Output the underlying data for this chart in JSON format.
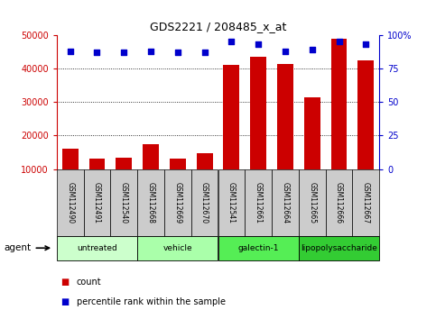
{
  "title": "GDS2221 / 208485_x_at",
  "samples": [
    "GSM112490",
    "GSM112491",
    "GSM112540",
    "GSM112668",
    "GSM112669",
    "GSM112670",
    "GSM112541",
    "GSM112661",
    "GSM112664",
    "GSM112665",
    "GSM112666",
    "GSM112667"
  ],
  "counts": [
    16000,
    13000,
    13500,
    17500,
    13200,
    14700,
    41200,
    43500,
    41500,
    31500,
    49000,
    42500
  ],
  "percentiles": [
    88,
    87,
    87,
    88,
    87,
    87,
    95,
    93,
    88,
    89,
    95,
    93
  ],
  "groups": [
    {
      "label": "untreated",
      "indices": [
        0,
        1,
        2
      ],
      "color": "#ccffcc"
    },
    {
      "label": "vehicle",
      "indices": [
        3,
        4,
        5
      ],
      "color": "#aaffaa"
    },
    {
      "label": "galectin-1",
      "indices": [
        6,
        7,
        8
      ],
      "color": "#55ee55"
    },
    {
      "label": "lipopolysaccharide",
      "indices": [
        9,
        10,
        11
      ],
      "color": "#33cc33"
    }
  ],
  "bar_color": "#cc0000",
  "dot_color": "#0000cc",
  "left_axis_color": "#cc0000",
  "right_axis_color": "#0000cc",
  "ylim_left": [
    10000,
    50000
  ],
  "ylim_right": [
    0,
    100
  ],
  "yticks_left": [
    10000,
    20000,
    30000,
    40000,
    50000
  ],
  "ytick_labels_left": [
    "10000",
    "20000",
    "30000",
    "40000",
    "50000"
  ],
  "yticks_right": [
    0,
    25,
    50,
    75,
    100
  ],
  "ytick_labels_right": [
    "0",
    "25",
    "50",
    "75",
    "100%"
  ],
  "bg_color": "#ffffff",
  "grid_color": "#000000",
  "sample_bg_color": "#cccccc",
  "agent_label": "agent",
  "legend_count": "count",
  "legend_percentile": "percentile rank within the sample"
}
